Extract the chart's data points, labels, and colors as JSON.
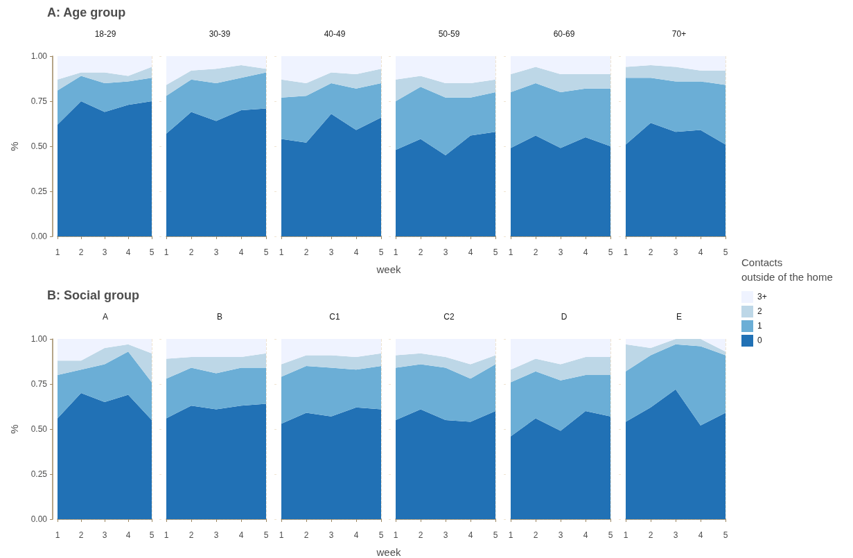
{
  "chart_data": [
    {
      "type": "area",
      "title": "18-29",
      "annotations": [
        "A: Age group"
      ],
      "ylabel": "%",
      "stacked": true,
      "categories": [
        "1",
        "2",
        "3",
        "4",
        "5"
      ],
      "ylim": [
        0,
        1
      ],
      "yticks": [
        {
          "value": 0,
          "label": "0.00"
        },
        {
          "value": 0.25,
          "label": "0.25"
        },
        {
          "value": 0.5,
          "label": "0.50"
        },
        {
          "value": 0.75,
          "label": "0.75"
        },
        {
          "value": 1,
          "label": "1.00"
        }
      ],
      "grid": true,
      "series": [
        {
          "color": "#2171b5",
          "values": [
            0.62,
            0.75,
            0.69,
            0.73,
            0.75
          ]
        },
        {
          "color": "#6baed6",
          "values": [
            0.19,
            0.14,
            0.16,
            0.13,
            0.13
          ]
        },
        {
          "color": "#bdd7e7",
          "values": [
            0.06,
            0.02,
            0.06,
            0.03,
            0.06
          ]
        },
        {
          "color": "#eff3ff",
          "values": [
            0.13,
            0.09,
            0.09,
            0.11,
            0.06
          ]
        }
      ]
    },
    {
      "type": "area",
      "title": "30-39",
      "tick_labels": "x",
      "stacked": true,
      "categories": [
        "1",
        "2",
        "3",
        "4",
        "5"
      ],
      "ylim": [
        0,
        1
      ],
      "yticks": [
        0,
        0.25,
        0.5,
        0.75,
        1
      ],
      "grid": true,
      "series": [
        {
          "color": "#2171b5",
          "values": [
            0.57,
            0.69,
            0.64,
            0.7,
            0.71
          ]
        },
        {
          "color": "#6baed6",
          "values": [
            0.21,
            0.18,
            0.21,
            0.18,
            0.2
          ]
        },
        {
          "color": "#bdd7e7",
          "values": [
            0.06,
            0.05,
            0.08,
            0.07,
            0.02
          ]
        },
        {
          "color": "#eff3ff",
          "values": [
            0.16,
            0.08,
            0.07,
            0.05,
            0.07
          ]
        }
      ]
    },
    {
      "type": "area",
      "title": "40-49",
      "xlabel": "week",
      "tick_labels": "x",
      "stacked": true,
      "categories": [
        "1",
        "2",
        "3",
        "4",
        "5"
      ],
      "ylim": [
        0,
        1
      ],
      "yticks": [
        0,
        0.25,
        0.5,
        0.75,
        1
      ],
      "grid": true,
      "series": [
        {
          "color": "#2171b5",
          "values": [
            0.54,
            0.52,
            0.68,
            0.59,
            0.66
          ]
        },
        {
          "color": "#6baed6",
          "values": [
            0.23,
            0.26,
            0.17,
            0.23,
            0.19
          ]
        },
        {
          "color": "#bdd7e7",
          "values": [
            0.1,
            0.07,
            0.06,
            0.08,
            0.08
          ]
        },
        {
          "color": "#eff3ff",
          "values": [
            0.13,
            0.15,
            0.09,
            0.1,
            0.07
          ]
        }
      ]
    },
    {
      "type": "area",
      "title": "50-59",
      "tick_labels": "x",
      "stacked": true,
      "categories": [
        "1",
        "2",
        "3",
        "4",
        "5"
      ],
      "ylim": [
        0,
        1
      ],
      "yticks": [
        0,
        0.25,
        0.5,
        0.75,
        1
      ],
      "grid": true,
      "series": [
        {
          "color": "#2171b5",
          "values": [
            0.48,
            0.54,
            0.45,
            0.56,
            0.58
          ]
        },
        {
          "color": "#6baed6",
          "values": [
            0.27,
            0.29,
            0.32,
            0.21,
            0.22
          ]
        },
        {
          "color": "#bdd7e7",
          "values": [
            0.12,
            0.06,
            0.08,
            0.08,
            0.07
          ]
        },
        {
          "color": "#eff3ff",
          "values": [
            0.13,
            0.11,
            0.15,
            0.15,
            0.13
          ]
        }
      ]
    },
    {
      "type": "area",
      "title": "60-69",
      "tick_labels": "x",
      "stacked": true,
      "categories": [
        "1",
        "2",
        "3",
        "4",
        "5"
      ],
      "ylim": [
        0,
        1
      ],
      "yticks": [
        0,
        0.25,
        0.5,
        0.75,
        1
      ],
      "grid": true,
      "series": [
        {
          "color": "#2171b5",
          "values": [
            0.49,
            0.56,
            0.49,
            0.55,
            0.5
          ]
        },
        {
          "color": "#6baed6",
          "values": [
            0.31,
            0.29,
            0.31,
            0.27,
            0.32
          ]
        },
        {
          "color": "#bdd7e7",
          "values": [
            0.1,
            0.09,
            0.1,
            0.08,
            0.08
          ]
        },
        {
          "color": "#eff3ff",
          "values": [
            0.1,
            0.06,
            0.1,
            0.1,
            0.1
          ]
        }
      ]
    },
    {
      "type": "area",
      "title": "70+",
      "tick_labels": "x",
      "legend": "right",
      "legend_title": "Contacts\noutside of the home",
      "stacked": true,
      "categories": [
        "1",
        "2",
        "3",
        "4",
        "5"
      ],
      "ylim": [
        0,
        1
      ],
      "yticks": [
        0,
        0.25,
        0.5,
        0.75,
        1
      ],
      "grid": true,
      "series": [
        {
          "name": "0",
          "color": "#2171b5",
          "values": [
            0.51,
            0.63,
            0.58,
            0.59,
            0.51
          ]
        },
        {
          "name": "1",
          "color": "#6baed6",
          "values": [
            0.37,
            0.25,
            0.28,
            0.27,
            0.33
          ]
        },
        {
          "name": "2",
          "color": "#bdd7e7",
          "values": [
            0.06,
            0.07,
            0.08,
            0.06,
            0.08
          ]
        },
        {
          "name": "3+",
          "color": "#eff3ff",
          "values": [
            0.06,
            0.05,
            0.06,
            0.08,
            0.08
          ]
        }
      ]
    },
    {
      "type": "area",
      "title": "A",
      "annotations": [
        "B: Social group"
      ],
      "ylabel": "%",
      "stacked": true,
      "categories": [
        "1",
        "2",
        "3",
        "4",
        "5"
      ],
      "ylim": [
        0,
        1
      ],
      "yticks": [
        {
          "value": 0,
          "label": "0.00"
        },
        {
          "value": 0.25,
          "label": "0.25"
        },
        {
          "value": 0.5,
          "label": "0.50"
        },
        {
          "value": 0.75,
          "label": "0.75"
        },
        {
          "value": 1,
          "label": "1.00"
        }
      ],
      "grid": true,
      "series": [
        {
          "color": "#2171b5",
          "values": [
            0.56,
            0.7,
            0.65,
            0.69,
            0.55
          ]
        },
        {
          "color": "#6baed6",
          "values": [
            0.24,
            0.13,
            0.21,
            0.24,
            0.21
          ]
        },
        {
          "color": "#bdd7e7",
          "values": [
            0.08,
            0.05,
            0.09,
            0.04,
            0.16
          ]
        },
        {
          "color": "#eff3ff",
          "values": [
            0.12,
            0.12,
            0.05,
            0.03,
            0.08
          ]
        }
      ]
    },
    {
      "type": "area",
      "title": "B",
      "tick_labels": "x",
      "stacked": true,
      "categories": [
        "1",
        "2",
        "3",
        "4",
        "5"
      ],
      "ylim": [
        0,
        1
      ],
      "yticks": [
        0,
        0.25,
        0.5,
        0.75,
        1
      ],
      "grid": true,
      "series": [
        {
          "color": "#2171b5",
          "values": [
            0.56,
            0.63,
            0.61,
            0.63,
            0.64
          ]
        },
        {
          "color": "#6baed6",
          "values": [
            0.22,
            0.21,
            0.2,
            0.21,
            0.2
          ]
        },
        {
          "color": "#bdd7e7",
          "values": [
            0.11,
            0.06,
            0.09,
            0.06,
            0.08
          ]
        },
        {
          "color": "#eff3ff",
          "values": [
            0.11,
            0.1,
            0.1,
            0.1,
            0.08
          ]
        }
      ]
    },
    {
      "type": "area",
      "title": "C1",
      "xlabel": "week",
      "tick_labels": "x",
      "stacked": true,
      "categories": [
        "1",
        "2",
        "3",
        "4",
        "5"
      ],
      "ylim": [
        0,
        1
      ],
      "yticks": [
        0,
        0.25,
        0.5,
        0.75,
        1
      ],
      "grid": true,
      "series": [
        {
          "color": "#2171b5",
          "values": [
            0.53,
            0.59,
            0.57,
            0.62,
            0.61
          ]
        },
        {
          "color": "#6baed6",
          "values": [
            0.26,
            0.26,
            0.27,
            0.21,
            0.24
          ]
        },
        {
          "color": "#bdd7e7",
          "values": [
            0.07,
            0.06,
            0.07,
            0.07,
            0.07
          ]
        },
        {
          "color": "#eff3ff",
          "values": [
            0.14,
            0.09,
            0.09,
            0.1,
            0.08
          ]
        }
      ]
    },
    {
      "type": "area",
      "title": "C2",
      "tick_labels": "x",
      "stacked": true,
      "categories": [
        "1",
        "2",
        "3",
        "4",
        "5"
      ],
      "ylim": [
        0,
        1
      ],
      "yticks": [
        0,
        0.25,
        0.5,
        0.75,
        1
      ],
      "grid": true,
      "series": [
        {
          "color": "#2171b5",
          "values": [
            0.55,
            0.61,
            0.55,
            0.54,
            0.6
          ]
        },
        {
          "color": "#6baed6",
          "values": [
            0.29,
            0.25,
            0.29,
            0.24,
            0.26
          ]
        },
        {
          "color": "#bdd7e7",
          "values": [
            0.07,
            0.06,
            0.06,
            0.08,
            0.05
          ]
        },
        {
          "color": "#eff3ff",
          "values": [
            0.09,
            0.08,
            0.1,
            0.14,
            0.09
          ]
        }
      ]
    },
    {
      "type": "area",
      "title": "D",
      "tick_labels": "x",
      "stacked": true,
      "categories": [
        "1",
        "2",
        "3",
        "4",
        "5"
      ],
      "ylim": [
        0,
        1
      ],
      "yticks": [
        0,
        0.25,
        0.5,
        0.75,
        1
      ],
      "grid": true,
      "series": [
        {
          "color": "#2171b5",
          "values": [
            0.46,
            0.56,
            0.49,
            0.6,
            0.57
          ]
        },
        {
          "color": "#6baed6",
          "values": [
            0.3,
            0.26,
            0.28,
            0.2,
            0.23
          ]
        },
        {
          "color": "#bdd7e7",
          "values": [
            0.07,
            0.07,
            0.09,
            0.1,
            0.1
          ]
        },
        {
          "color": "#eff3ff",
          "values": [
            0.17,
            0.11,
            0.14,
            0.1,
            0.1
          ]
        }
      ]
    },
    {
      "type": "area",
      "title": "E",
      "tick_labels": "x",
      "stacked": true,
      "categories": [
        "1",
        "2",
        "3",
        "4",
        "5"
      ],
      "ylim": [
        0,
        1
      ],
      "yticks": [
        0,
        0.25,
        0.5,
        0.75,
        1
      ],
      "grid": true,
      "series": [
        {
          "color": "#2171b5",
          "values": [
            0.54,
            0.62,
            0.72,
            0.52,
            0.59
          ]
        },
        {
          "color": "#6baed6",
          "values": [
            0.28,
            0.29,
            0.25,
            0.44,
            0.32
          ]
        },
        {
          "color": "#bdd7e7",
          "values": [
            0.15,
            0.04,
            0.03,
            0.04,
            0.02
          ]
        },
        {
          "color": "#eff3ff",
          "values": [
            0.03,
            0.05,
            0,
            0,
            0.07
          ]
        }
      ]
    }
  ]
}
